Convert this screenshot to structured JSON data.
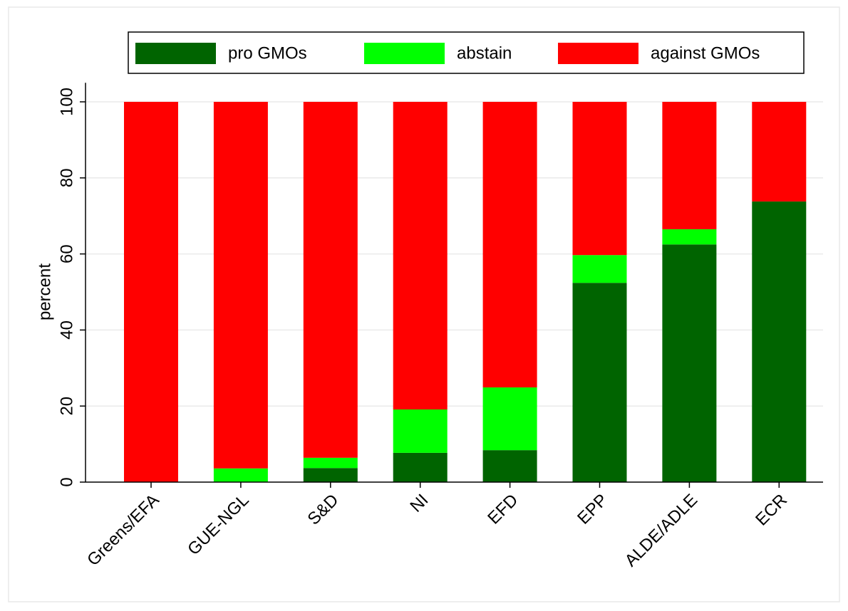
{
  "chart_data": {
    "type": "stacked_bar",
    "categories": [
      "Greens/EFA",
      "GUE-NGL",
      "S&D",
      "NI",
      "EFD",
      "EPP",
      "ALDE/ADLE",
      "ECR"
    ],
    "series": [
      {
        "name": "pro GMOs",
        "color": "#006400",
        "values": [
          0,
          0,
          3.7,
          7.7,
          8.4,
          52.4,
          62.5,
          73.8
        ]
      },
      {
        "name": "abstain",
        "color": "#00ff00",
        "values": [
          0,
          3.6,
          2.7,
          11.4,
          16.5,
          7.3,
          4.0,
          0
        ]
      },
      {
        "name": "against GMOs",
        "color": "#ff0000",
        "values": [
          100,
          96.4,
          93.6,
          80.9,
          75.1,
          40.3,
          33.5,
          26.2
        ]
      }
    ],
    "y_label": "percent",
    "ylim": [
      0,
      105
    ],
    "yticks": [
      0,
      20,
      40,
      60,
      80,
      100
    ],
    "grid": true,
    "legend": "top"
  }
}
